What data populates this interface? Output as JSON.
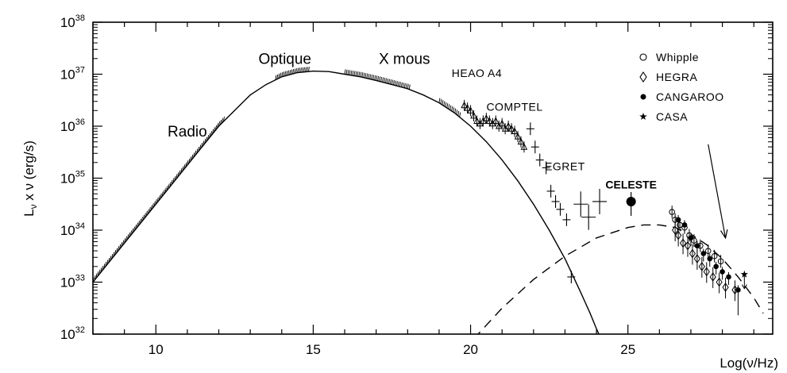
{
  "chart_data": {
    "type": "line",
    "title": "",
    "xlabel": "Log(ν/Hz)",
    "ylabel_parts": {
      "L": "L",
      "sub1": "ν",
      "mid": " x ν   (erg/s)"
    },
    "x_range": [
      8,
      29.6
    ],
    "y_range_log10": [
      32,
      38
    ],
    "y_scale": "log",
    "x_ticks": [
      {
        "v": 10,
        "label": "10"
      },
      {
        "v": 15,
        "label": "15"
      },
      {
        "v": 20,
        "label": "20"
      },
      {
        "v": 25,
        "label": "25"
      }
    ],
    "y_ticks": [
      {
        "v": 32,
        "base": "10",
        "exp": "32"
      },
      {
        "v": 33,
        "base": "10",
        "exp": "33"
      },
      {
        "v": 34,
        "base": "10",
        "exp": "34"
      },
      {
        "v": 35,
        "base": "10",
        "exp": "35"
      },
      {
        "v": 36,
        "base": "10",
        "exp": "36"
      },
      {
        "v": 37,
        "base": "10",
        "exp": "37"
      },
      {
        "v": 38,
        "base": "10",
        "exp": "38"
      }
    ],
    "synchrotron_curve": {
      "style": "solid",
      "x": [
        8.0,
        9.0,
        10.0,
        11.0,
        12.0,
        13.0,
        13.5,
        14.0,
        14.5,
        15.0,
        15.5,
        16.0,
        16.5,
        17.0,
        17.5,
        18.0,
        18.5,
        19.0,
        19.5,
        20.0,
        20.5,
        21.0,
        21.5,
        22.0,
        22.5,
        23.0,
        23.5,
        23.8,
        24.0,
        24.15
      ],
      "y": [
        33.0,
        33.75,
        34.5,
        35.25,
        36.0,
        36.6,
        36.8,
        36.95,
        37.03,
        37.06,
        37.05,
        37.0,
        36.95,
        36.88,
        36.8,
        36.72,
        36.6,
        36.45,
        36.25,
        36.0,
        35.7,
        35.35,
        34.95,
        34.5,
        34.0,
        33.45,
        32.8,
        32.4,
        32.1,
        31.9
      ]
    },
    "compton_curve": {
      "style": "dashed",
      "x": [
        20.1,
        21.0,
        22.0,
        23.0,
        24.0,
        25.0,
        25.5,
        26.0,
        26.5,
        27.0,
        27.5,
        28.0,
        28.5,
        29.0,
        29.3
      ],
      "y": [
        31.9,
        32.5,
        33.05,
        33.5,
        33.85,
        34.05,
        34.1,
        34.1,
        34.05,
        33.92,
        33.72,
        33.45,
        33.1,
        32.7,
        32.4
      ]
    },
    "annotations": [
      {
        "text": "Radio",
        "x": 11.0,
        "y": 35.8
      },
      {
        "text": "Optique",
        "x": 14.1,
        "y": 37.2
      },
      {
        "text": "X mous",
        "x": 17.9,
        "y": 37.2
      }
    ],
    "instrument_labels": [
      {
        "text": "HEAO A4",
        "x": 20.2,
        "y": 36.95
      },
      {
        "text": "COMPTEL",
        "x": 21.4,
        "y": 36.3
      },
      {
        "text": "EGRET",
        "x": 23.0,
        "y": 35.15
      },
      {
        "text": "CELESTE",
        "x": 25.1,
        "y": 34.8,
        "bold": true
      }
    ],
    "legend": {
      "position": "top-right",
      "items": [
        {
          "symbol": "circle-open",
          "label": "Whipple"
        },
        {
          "symbol": "diamond-open",
          "label": "HEGRA"
        },
        {
          "symbol": "circle-filled",
          "label": "CANGAROO"
        },
        {
          "symbol": "star",
          "label": "CASA"
        }
      ]
    },
    "arrow": {
      "from": [
        27.55,
        35.65
      ],
      "to": [
        28.1,
        33.85
      ]
    },
    "data_bands": {
      "radio": {
        "x_range": [
          8.0,
          12.2
        ]
      },
      "optical": {
        "x_range": [
          13.8,
          14.9
        ]
      },
      "xray": {
        "x_range": [
          16.0,
          18.1
        ]
      },
      "heao": {
        "x_range": [
          19.0,
          19.7
        ]
      }
    },
    "comptel_points": {
      "x": [
        19.8,
        19.9,
        20.0,
        20.1,
        20.2,
        20.3,
        20.4,
        20.5,
        20.6,
        20.7,
        20.8,
        20.9,
        21.0,
        21.1,
        21.2,
        21.3,
        21.4,
        21.5,
        21.6,
        21.7
      ],
      "y": [
        36.4,
        36.35,
        36.3,
        36.2,
        36.1,
        36.05,
        36.1,
        36.15,
        36.1,
        36.05,
        36.1,
        36.0,
        36.05,
        35.95,
        36.0,
        35.95,
        35.9,
        35.8,
        35.7,
        35.6
      ]
    },
    "egret_points": {
      "x": [
        21.9,
        22.05,
        22.2,
        22.4,
        22.55,
        22.7,
        22.85,
        23.05,
        23.2,
        23.5,
        23.75,
        24.1
      ],
      "y": [
        35.95,
        35.6,
        35.35,
        35.2,
        34.75,
        34.55,
        34.4,
        34.2,
        33.1,
        34.5,
        34.25,
        34.55
      ]
    },
    "celeste_point": {
      "x": 25.1,
      "y": 34.55
    },
    "whipple_points": {
      "x": [
        26.4,
        26.5,
        26.65,
        26.8,
        26.95,
        27.1,
        27.3,
        27.55,
        27.75,
        27.95
      ],
      "y": [
        34.35,
        34.2,
        34.1,
        34.05,
        33.9,
        33.8,
        33.7,
        33.6,
        33.5,
        33.4
      ]
    },
    "hegra_points": {
      "x": [
        26.5,
        26.6,
        26.75,
        26.9,
        27.05,
        27.2,
        27.35,
        27.5,
        27.7,
        27.9,
        28.1,
        28.4
      ],
      "y": [
        34.0,
        33.9,
        33.75,
        33.7,
        33.55,
        33.45,
        33.3,
        33.2,
        33.1,
        33.0,
        32.9,
        32.85
      ]
    },
    "cangaroo_points": {
      "x": [
        26.6,
        26.8,
        27.0,
        27.2,
        27.4,
        27.6,
        27.8,
        28.0,
        28.2,
        28.5
      ],
      "y": [
        34.2,
        34.1,
        33.85,
        33.7,
        33.55,
        33.45,
        33.3,
        33.2,
        33.1,
        32.85
      ]
    },
    "casa_points": {
      "x": [
        28.7
      ],
      "y": [
        33.15
      ]
    }
  }
}
